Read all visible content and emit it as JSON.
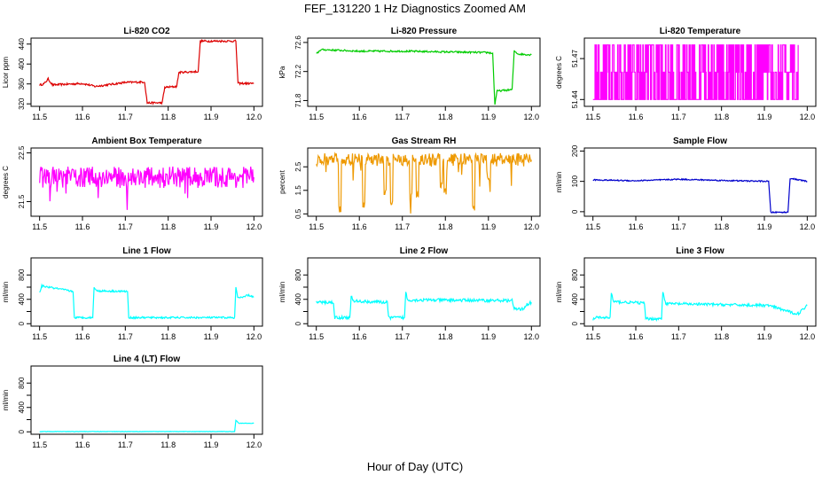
{
  "figure": {
    "title": "FEF_131220  1 Hz Diagnostics Zoomed AM",
    "xlabel": "Hour of Day (UTC)"
  },
  "chart_data": [
    {
      "id": "co2",
      "type": "line",
      "title": "Li-820 CO2",
      "ylabel": "Licor ppm",
      "color": "#dd0000",
      "xlim": [
        11.48,
        12.02
      ],
      "ylim": [
        315,
        452
      ],
      "xticks": [
        11.5,
        11.6,
        11.7,
        11.8,
        11.9,
        12.0
      ],
      "xtick_labels": [
        "11.5",
        "11.6",
        "11.7",
        "11.8",
        "11.9",
        "12.0"
      ],
      "yticks": [
        320,
        360,
        400,
        440
      ],
      "ytick_labels": [
        "320",
        "360",
        "400",
        "440"
      ],
      "noise": 2,
      "series": [
        {
          "name": "CO2",
          "x": [
            11.5,
            11.51,
            11.52,
            11.53,
            11.6,
            11.63,
            11.7,
            11.745,
            11.751,
            11.786,
            11.792,
            11.82,
            11.825,
            11.87,
            11.875,
            11.958,
            11.963,
            12.0
          ],
          "y": [
            358,
            360,
            370,
            358,
            361,
            355,
            363,
            364,
            322,
            322,
            353,
            355,
            383,
            385,
            446,
            446,
            361,
            361
          ]
        }
      ]
    },
    {
      "id": "pressure",
      "type": "line",
      "title": "Li-820 Pressure",
      "ylabel": "kPa",
      "color": "#00cc00",
      "xlim": [
        11.48,
        12.02
      ],
      "ylim": [
        71.72,
        72.66
      ],
      "xticks": [
        11.5,
        11.6,
        11.7,
        11.8,
        11.9,
        12.0
      ],
      "xtick_labels": [
        "11.5",
        "11.6",
        "11.7",
        "11.8",
        "11.9",
        "12.0"
      ],
      "yticks": [
        71.8,
        72.2,
        72.6
      ],
      "ytick_labels": [
        "71.8",
        "72.2",
        "72.6"
      ],
      "noise": 0.012,
      "series": [
        {
          "name": "Pressure",
          "x": [
            11.5,
            11.51,
            11.52,
            11.6,
            11.7,
            11.8,
            11.9,
            11.91,
            11.915,
            11.92,
            11.955,
            11.96,
            11.97,
            12.0
          ],
          "y": [
            72.44,
            72.5,
            72.5,
            72.48,
            72.48,
            72.47,
            72.46,
            72.45,
            71.75,
            71.93,
            71.95,
            72.48,
            72.44,
            72.43
          ]
        }
      ]
    },
    {
      "id": "temperature",
      "type": "line",
      "title": "Li-820 Temperature",
      "ylabel": "degrees C",
      "color": "#ff00ff",
      "xlim": [
        11.48,
        12.02
      ],
      "ylim": [
        51.435,
        51.485
      ],
      "xticks": [
        11.5,
        11.6,
        11.7,
        11.8,
        11.9,
        12.0
      ],
      "xtick_labels": [
        "11.5",
        "11.6",
        "11.7",
        "11.8",
        "11.9",
        "12.0"
      ],
      "yticks": [
        51.44,
        51.47
      ],
      "ytick_labels": [
        "51.44",
        "51.47"
      ],
      "noise": 0,
      "series": [
        {
          "name": "Temperature",
          "x": [
            11.5,
            11.98
          ],
          "y": [
            51.44,
            51.44
          ]
        }
      ],
      "toggle_levels": [
        51.44,
        51.46,
        51.48
      ]
    },
    {
      "id": "ambient",
      "type": "line",
      "title": "Ambient Box Temperature",
      "ylabel": "degrees C",
      "color": "#ff00ff",
      "xlim": [
        11.48,
        12.02
      ],
      "ylim": [
        21.2,
        22.6
      ],
      "xticks": [
        11.5,
        11.6,
        11.7,
        11.8,
        11.9,
        12.0
      ],
      "xtick_labels": [
        "11.5",
        "11.6",
        "11.7",
        "11.8",
        "11.9",
        "12.0"
      ],
      "yticks": [
        21.5,
        22.5
      ],
      "ytick_labels": [
        "21.5",
        "22.5"
      ],
      "noise": 0.22,
      "series": [
        {
          "name": "Ambient",
          "x": [
            11.5,
            12.0
          ],
          "y": [
            22.0,
            22.0
          ]
        }
      ]
    },
    {
      "id": "rh",
      "type": "line",
      "title": "Gas Stream RH",
      "ylabel": "percent",
      "color": "#ee9900",
      "xlim": [
        11.48,
        12.02
      ],
      "ylim": [
        0.4,
        3.3
      ],
      "xticks": [
        11.5,
        11.6,
        11.7,
        11.8,
        11.9,
        12.0
      ],
      "xtick_labels": [
        "11.5",
        "11.6",
        "11.7",
        "11.8",
        "11.9",
        "12.0"
      ],
      "yticks": [
        0.5,
        1.5,
        2.5
      ],
      "ytick_labels": [
        "0.5",
        "1.5",
        "2.5"
      ],
      "noise": 0.28,
      "series": [
        {
          "name": "RH",
          "x": [
            11.5,
            12.0
          ],
          "y": [
            2.8,
            2.8
          ]
        }
      ],
      "dips": [
        [
          11.555,
          0.55
        ],
        [
          11.61,
          0.7
        ],
        [
          11.66,
          1.3
        ],
        [
          11.675,
          0.75
        ],
        [
          11.72,
          1.1
        ],
        [
          11.735,
          1.2
        ],
        [
          11.79,
          1.6
        ],
        [
          11.8,
          1.3
        ],
        [
          11.865,
          0.6
        ],
        [
          11.9,
          1.8
        ]
      ]
    },
    {
      "id": "sample",
      "type": "line",
      "title": "Sample Flow",
      "ylabel": "ml/min",
      "color": "#0000cc",
      "xlim": [
        11.48,
        12.02
      ],
      "ylim": [
        -15,
        210
      ],
      "xticks": [
        11.5,
        11.6,
        11.7,
        11.8,
        11.9,
        12.0
      ],
      "xtick_labels": [
        "11.5",
        "11.6",
        "11.7",
        "11.8",
        "11.9",
        "12.0"
      ],
      "yticks": [
        0,
        100,
        200
      ],
      "ytick_labels": [
        "0",
        "100",
        "200"
      ],
      "noise": 2,
      "series": [
        {
          "name": "Sample",
          "x": [
            11.5,
            11.6,
            11.7,
            11.8,
            11.91,
            11.915,
            11.955,
            11.96,
            12.0
          ],
          "y": [
            105,
            102,
            107,
            103,
            100,
            -2,
            -2,
            110,
            100
          ]
        }
      ]
    },
    {
      "id": "line1",
      "type": "line",
      "title": "Line 1 Flow",
      "ylabel": "ml/min",
      "color": "#00ffff",
      "xlim": [
        11.48,
        12.02
      ],
      "ylim": [
        -40,
        1080
      ],
      "xticks": [
        11.5,
        11.6,
        11.7,
        11.8,
        11.9,
        12.0
      ],
      "xtick_labels": [
        "11.5",
        "11.6",
        "11.7",
        "11.8",
        "11.9",
        "12.0"
      ],
      "yticks": [
        0,
        200,
        400,
        600,
        800
      ],
      "ytick_labels": [
        "0",
        "400",
        "800"
      ],
      "noise": 15,
      "series": [
        {
          "name": "Line 1",
          "x": [
            11.5,
            11.505,
            11.578,
            11.581,
            11.624,
            11.627,
            11.632,
            11.705,
            11.708,
            11.955,
            11.958,
            11.962,
            11.975,
            11.985,
            12.0
          ],
          "y": [
            500,
            620,
            530,
            100,
            100,
            600,
            540,
            530,
            100,
            100,
            600,
            430,
            430,
            470,
            440
          ]
        }
      ]
    },
    {
      "id": "line2",
      "type": "line",
      "title": "Line 2 Flow",
      "ylabel": "ml/min",
      "color": "#00ffff",
      "xlim": [
        11.48,
        12.02
      ],
      "ylim": [
        -40,
        1080
      ],
      "xticks": [
        11.5,
        11.6,
        11.7,
        11.8,
        11.9,
        12.0
      ],
      "xtick_labels": [
        "11.5",
        "11.6",
        "11.7",
        "11.8",
        "11.9",
        "12.0"
      ],
      "yticks": [
        0,
        200,
        400,
        600,
        800
      ],
      "ytick_labels": [
        "0",
        "400",
        "800"
      ],
      "noise": 25,
      "series": [
        {
          "name": "Line 2",
          "x": [
            11.5,
            11.54,
            11.543,
            11.578,
            11.581,
            11.585,
            11.665,
            11.668,
            11.705,
            11.708,
            11.712,
            11.955,
            11.96,
            11.98,
            11.99,
            12.0
          ],
          "y": [
            350,
            350,
            100,
            100,
            460,
            370,
            350,
            100,
            100,
            520,
            390,
            380,
            240,
            240,
            320,
            350
          ]
        }
      ]
    },
    {
      "id": "line3",
      "type": "line",
      "title": "Line 3 Flow",
      "ylabel": "ml/min",
      "color": "#00ffff",
      "xlim": [
        11.48,
        12.02
      ],
      "ylim": [
        -40,
        1080
      ],
      "xticks": [
        11.5,
        11.6,
        11.7,
        11.8,
        11.9,
        12.0
      ],
      "xtick_labels": [
        "11.5",
        "11.6",
        "11.7",
        "11.8",
        "11.9",
        "12.0"
      ],
      "yticks": [
        0,
        200,
        400,
        600,
        800
      ],
      "ytick_labels": [
        "0",
        "400",
        "800"
      ],
      "noise": 22,
      "series": [
        {
          "name": "Line 3",
          "x": [
            11.5,
            11.505,
            11.54,
            11.543,
            11.548,
            11.62,
            11.623,
            11.66,
            11.663,
            11.67,
            11.9,
            11.91,
            11.97,
            11.98,
            12.0
          ],
          "y": [
            60,
            100,
            100,
            500,
            360,
            340,
            80,
            80,
            530,
            330,
            300,
            300,
            170,
            170,
            300
          ]
        }
      ]
    },
    {
      "id": "line4",
      "type": "line",
      "title": "Line 4 (LT) Flow",
      "ylabel": "ml/min",
      "color": "#00ffff",
      "xlim": [
        11.48,
        12.02
      ],
      "ylim": [
        -40,
        1080
      ],
      "xticks": [
        11.5,
        11.6,
        11.7,
        11.8,
        11.9,
        12.0
      ],
      "xtick_labels": [
        "11.5",
        "11.6",
        "11.7",
        "11.8",
        "11.9",
        "12.0"
      ],
      "yticks": [
        0,
        200,
        400,
        600,
        800
      ],
      "ytick_labels": [
        "0",
        "400",
        "800"
      ],
      "noise": 3,
      "series": [
        {
          "name": "Line 4",
          "x": [
            11.5,
            11.955,
            11.958,
            11.965,
            12.0
          ],
          "y": [
            5,
            5,
            190,
            140,
            140
          ]
        }
      ]
    }
  ]
}
